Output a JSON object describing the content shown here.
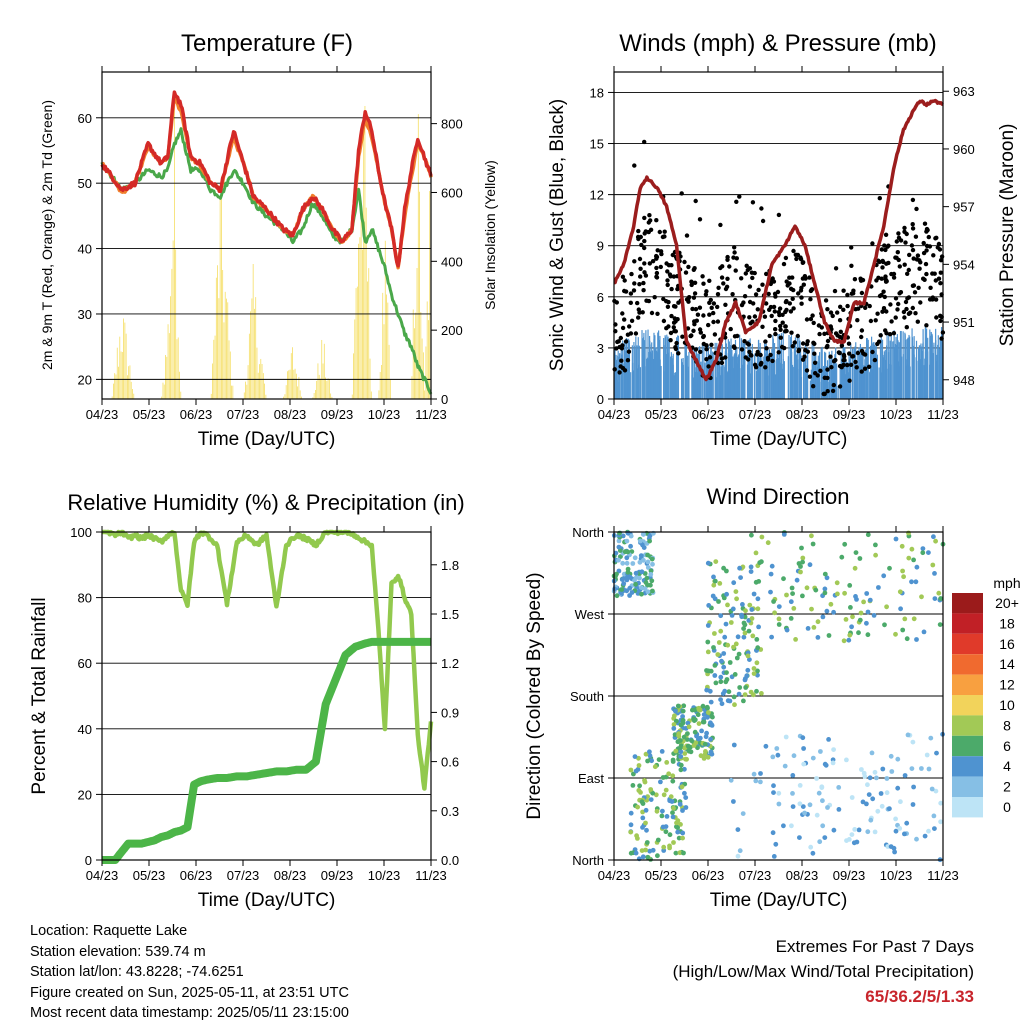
{
  "x_ticks": [
    "04/23",
    "05/23",
    "06/23",
    "07/23",
    "08/23",
    "09/23",
    "10/23",
    "11/23"
  ],
  "time_label": "Time (Day/UTC)",
  "panels": {
    "temperature": {
      "title": "Temperature (F)",
      "ylabel_left": "2m & 9m T (Red, Orange) & 2m Td (Green)",
      "ylabel_right": "Solar Insolation (Yellow)",
      "left_ticks": [
        "20",
        "30",
        "40",
        "50",
        "60"
      ],
      "right_ticks": [
        "0",
        "200",
        "400",
        "600",
        "800"
      ]
    },
    "winds": {
      "title": "Winds (mph) & Pressure (mb)",
      "ylabel_left": "Sonic Wind & Gust (Blue, Black)",
      "ylabel_right": "Station Pressure (Maroon)",
      "left_ticks": [
        "0",
        "3",
        "6",
        "9",
        "12",
        "15",
        "18"
      ],
      "right_ticks": [
        "948",
        "951",
        "954",
        "957",
        "960",
        "963"
      ]
    },
    "humidity": {
      "title": "Relative Humidity (%) & Precipitation (in)",
      "ylabel_left": "Percent & Total Rainfall",
      "left_ticks": [
        "0",
        "20",
        "40",
        "60",
        "80",
        "100"
      ],
      "right_ticks": [
        "0.0",
        "0.3",
        "0.6",
        "0.9",
        "1.2",
        "1.5",
        "1.8"
      ]
    },
    "direction": {
      "title": "Wind Direction",
      "ylabel_left": "Direction (Colored By Speed)",
      "dir_ticks": [
        "North",
        "East",
        "South",
        "West",
        "North"
      ],
      "legend_title": "mph",
      "legend_labels": [
        "20+",
        "18",
        "16",
        "14",
        "12",
        "10",
        "8",
        "6",
        "4",
        "2",
        "0"
      ]
    }
  },
  "info": {
    "location": "Location: Raquette Lake",
    "elevation": "Station elevation: 539.74 m",
    "latlon": "Station lat/lon: 43.8228; -74.6251",
    "created": "Figure created on Sun, 2025-05-11, at 23:51 UTC",
    "recent": "Most recent data timestamp: 2025/05/11 23:15:00"
  },
  "extremes": {
    "title": "Extremes For Past 7 Days",
    "subtitle": "(High/Low/Max Wind/Total Precipitation)",
    "values": "65/36.2/5/1.33"
  },
  "colors": {
    "temp2m": "#d42a27",
    "temp9m": "#f07f2c",
    "dewpoint": "#4aa84a",
    "solar": "#f5de63",
    "gust": "#000000",
    "wind": "#4f93d0",
    "pressure": "#9b1d1d",
    "rh": "#92c94e",
    "precip": "#4cb548",
    "speed_scale": [
      "#9b1b1b",
      "#c12026",
      "#e03a2a",
      "#f06a2f",
      "#f8a040",
      "#f2d35b",
      "#a2c956",
      "#4caa6a",
      "#4f93d0",
      "#86bfe5",
      "#bde4f6"
    ]
  },
  "chart_data": [
    {
      "type": "line",
      "title": "Temperature (F)",
      "xlabel": "Time (Day/UTC)",
      "ylabel": "2m & 9m T (Red, Orange) & 2m Td (Green)",
      "ylim": [
        17,
        67
      ],
      "y2label": "Solar Insolation (Yellow)",
      "y2lim": [
        0,
        950
      ],
      "x": [
        0,
        0.03,
        0.06,
        0.1,
        0.14,
        0.18,
        0.2,
        0.22,
        0.24,
        0.27,
        0.3,
        0.33,
        0.36,
        0.4,
        0.43,
        0.46,
        0.5,
        0.55,
        0.58,
        0.61,
        0.64,
        0.67,
        0.7,
        0.73,
        0.76,
        0.78,
        0.8,
        0.82,
        0.84,
        0.86,
        0.88,
        0.9,
        0.92,
        0.94,
        0.96,
        0.98,
        1.0
      ],
      "series": [
        {
          "name": "2m T",
          "values": [
            53,
            51,
            49,
            50,
            56,
            53,
            54,
            64,
            62,
            54,
            53,
            50,
            49,
            58,
            53,
            48,
            46,
            43,
            42,
            46,
            48,
            46,
            43,
            41,
            43,
            55,
            61,
            58,
            52,
            47,
            43,
            37,
            46,
            52,
            57,
            54,
            51
          ]
        },
        {
          "name": "9m T",
          "values": [
            53,
            51,
            48.5,
            50,
            55.5,
            53,
            54,
            63,
            61,
            54,
            52.5,
            50,
            49,
            57,
            53,
            48,
            46,
            43,
            42,
            46,
            48,
            46,
            43,
            41,
            43,
            54,
            60,
            57,
            52,
            47,
            43,
            37,
            45,
            51,
            56,
            54,
            51
          ]
        },
        {
          "name": "2m Td",
          "values": [
            53,
            51,
            49,
            50,
            52,
            51,
            52,
            56,
            58,
            52,
            52,
            49,
            48,
            52,
            50,
            47,
            45,
            43,
            41,
            43,
            47,
            45,
            42,
            41,
            43,
            49,
            41,
            43,
            40,
            37,
            33,
            30,
            27,
            25,
            22,
            20,
            18
          ]
        },
        {
          "name": "Solar",
          "values": [
            0,
            0,
            320,
            0,
            0,
            0,
            250,
            900,
            0,
            0,
            0,
            0,
            700,
            0,
            0,
            400,
            0,
            0,
            180,
            0,
            0,
            200,
            0,
            0,
            0,
            750,
            900,
            0,
            0,
            500,
            0,
            0,
            0,
            0,
            950,
            0,
            850
          ]
        }
      ]
    },
    {
      "type": "line",
      "title": "Winds (mph) & Pressure (mb)",
      "xlabel": "Time (Day/UTC)",
      "ylabel": "Sonic Wind & Gust (Blue, Black)",
      "ylim": [
        0,
        19.2
      ],
      "y2label": "Station Pressure (Maroon)",
      "y2lim": [
        947,
        964
      ],
      "x": [
        0,
        0.03,
        0.06,
        0.08,
        0.1,
        0.13,
        0.16,
        0.19,
        0.22,
        0.25,
        0.28,
        0.31,
        0.34,
        0.37,
        0.4,
        0.44,
        0.48,
        0.52,
        0.55,
        0.58,
        0.61,
        0.64,
        0.67,
        0.7,
        0.73,
        0.76,
        0.79,
        0.82,
        0.85,
        0.88,
        0.91,
        0.93,
        0.95,
        0.97,
        0.99,
        1.0
      ],
      "series": [
        {
          "name": "Station Pressure",
          "values": [
            953,
            954,
            956,
            958,
            958.5,
            958,
            957,
            955,
            950,
            949,
            948,
            949,
            951,
            952,
            950.5,
            951,
            954,
            955,
            956,
            955,
            953,
            951,
            950,
            950,
            952,
            952,
            954,
            956,
            959,
            961,
            962,
            962.5,
            962.3,
            962.5,
            962.4,
            962.3
          ]
        },
        {
          "name": "Sonic Wind",
          "values": [
            1.5,
            2,
            2.2,
            2.5,
            2.6,
            2.6,
            2.3,
            2.2,
            2,
            1.8,
            1.6,
            1.8,
            2.2,
            2.3,
            2.2,
            2.0,
            2.2,
            2.4,
            2.3,
            2.0,
            1.8,
            1.7,
            1.6,
            1.6,
            1.8,
            2.0,
            2.2,
            2.4,
            2.5,
            2.6,
            2.6,
            2.7,
            2.8,
            2.9,
            2.8,
            2.7
          ]
        },
        {
          "name": "Gust",
          "values": [
            3,
            4.5,
            6,
            7.5,
            8,
            7.8,
            6.5,
            5.5,
            6,
            5,
            4,
            4.5,
            5.5,
            6,
            5,
            4.5,
            5,
            5.5,
            6,
            5,
            3.5,
            3,
            3.5,
            3.5,
            4,
            4.5,
            5,
            6,
            6.5,
            7,
            7.5,
            7.5,
            7,
            7,
            6.5,
            6
          ]
        }
      ]
    },
    {
      "type": "line",
      "title": "Relative Humidity (%) & Precipitation (in)",
      "xlabel": "Time (Day/UTC)",
      "ylabel": "Percent & Total Rainfall",
      "ylim": [
        0,
        100
      ],
      "y2lim": [
        0,
        2.0
      ],
      "x": [
        0,
        0.02,
        0.04,
        0.06,
        0.08,
        0.1,
        0.12,
        0.14,
        0.16,
        0.18,
        0.2,
        0.22,
        0.24,
        0.26,
        0.28,
        0.3,
        0.32,
        0.35,
        0.38,
        0.41,
        0.44,
        0.47,
        0.5,
        0.53,
        0.56,
        0.59,
        0.62,
        0.65,
        0.68,
        0.71,
        0.74,
        0.77,
        0.8,
        0.82,
        0.84,
        0.86,
        0.88,
        0.9,
        0.92,
        0.94,
        0.96,
        0.98,
        1.0
      ],
      "series": [
        {
          "name": "Relative Humidity",
          "values": [
            100,
            100,
            99,
            100,
            98,
            99,
            98,
            99,
            98,
            97,
            99,
            100,
            82,
            78,
            97,
            100,
            99,
            96,
            78,
            97,
            99,
            96,
            99,
            77,
            96,
            99,
            98,
            96,
            100,
            100,
            100,
            99,
            97,
            96,
            70,
            40,
            84,
            87,
            80,
            75,
            38,
            22,
            42
          ]
        },
        {
          "name": "Total Precipitation",
          "values": [
            0,
            0,
            0,
            0.05,
            0.1,
            0.1,
            0.1,
            0.11,
            0.12,
            0.14,
            0.15,
            0.17,
            0.18,
            0.2,
            0.46,
            0.48,
            0.49,
            0.5,
            0.5,
            0.51,
            0.51,
            0.52,
            0.53,
            0.54,
            0.54,
            0.55,
            0.55,
            0.6,
            0.95,
            1.1,
            1.25,
            1.3,
            1.32,
            1.33,
            1.33,
            1.33,
            1.33,
            1.33,
            1.33,
            1.33,
            1.33,
            1.33,
            1.33
          ]
        }
      ]
    },
    {
      "type": "scatter",
      "title": "Wind Direction",
      "xlabel": "Time (Day/UTC)",
      "ylabel": "Direction (Colored By Speed)",
      "ylim": [
        0,
        360
      ],
      "y_tick_labels": [
        "North",
        "East",
        "South",
        "West",
        "North"
      ],
      "color_scale_label": "mph",
      "color_scale": [
        "0",
        "2",
        "4",
        "6",
        "8",
        "10",
        "12",
        "14",
        "16",
        "18",
        "20+"
      ],
      "clusters": [
        {
          "x_range": [
            0.0,
            0.12
          ],
          "dir_range": [
            290,
            360
          ],
          "speed": 2
        },
        {
          "x_range": [
            0.05,
            0.22
          ],
          "dir_range": [
            0,
            120
          ],
          "speed": 3
        },
        {
          "x_range": [
            0.18,
            0.3
          ],
          "dir_range": [
            110,
            170
          ],
          "speed": 3
        },
        {
          "x_range": [
            0.28,
            0.45
          ],
          "dir_range": [
            170,
            330
          ],
          "speed": 3
        },
        {
          "x_range": [
            0.4,
            1.0
          ],
          "dir_range": [
            240,
            360
          ],
          "speed": 3
        },
        {
          "x_range": [
            0.35,
            1.0
          ],
          "dir_range": [
            0,
            140
          ],
          "speed": 1
        }
      ]
    }
  ]
}
